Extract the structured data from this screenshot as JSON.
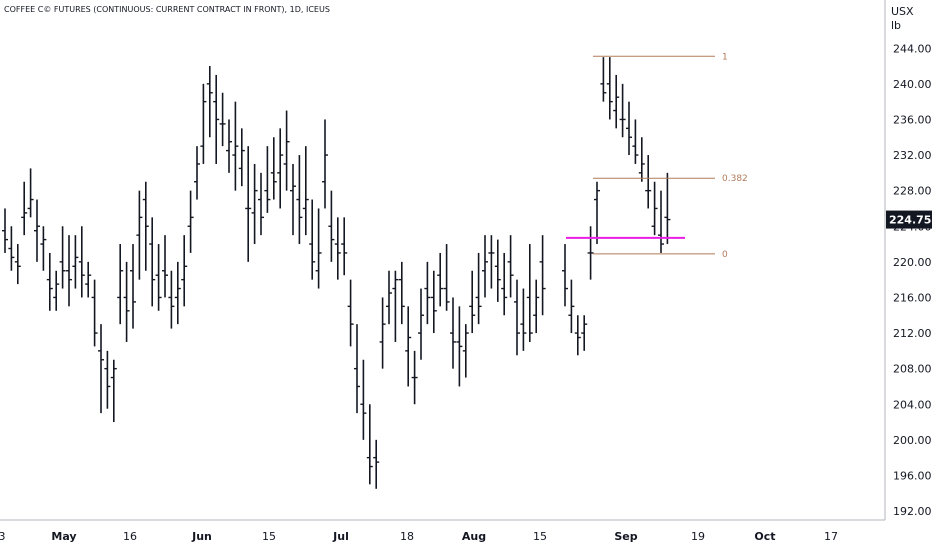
{
  "chart_title": "COFFEE C© FUTURES (CONTINUOUS: CURRENT CONTRACT IN FRONT), 1D, ICEUS",
  "unit_top": "USX",
  "unit_bottom": "lb",
  "last_price": "224.75",
  "colors": {
    "bars": "#131722",
    "fib_line": "#b07a5a",
    "support_line": "#e91ee6",
    "price_tag": "#131722",
    "axis_line": "#b2b5be"
  },
  "chart_data": {
    "type": "ohlc",
    "title": "COFFEE C© FUTURES (CONTINUOUS: CURRENT CONTRACT IN FRONT), 1D, ICEUS",
    "ylim": [
      190,
      246
    ],
    "yticks": [
      "244.00",
      "240.00",
      "236.00",
      "232.00",
      "228.00",
      "224.00",
      "220.00",
      "216.00",
      "212.00",
      "208.00",
      "204.00",
      "200.00",
      "196.00",
      "192.00"
    ],
    "xlabels": [
      {
        "label": "3",
        "month": false
      },
      {
        "label": "May",
        "month": true
      },
      {
        "label": "16",
        "month": false
      },
      {
        "label": "Jun",
        "month": true
      },
      {
        "label": "15",
        "month": false
      },
      {
        "label": "Jul",
        "month": true
      },
      {
        "label": "18",
        "month": false
      },
      {
        "label": "Aug",
        "month": true
      },
      {
        "label": "15",
        "month": false
      },
      {
        "label": "Sep",
        "month": true
      },
      {
        "label": "19",
        "month": false
      },
      {
        "label": "Oct",
        "month": true
      },
      {
        "label": "17",
        "month": false
      }
    ],
    "fib_levels": [
      {
        "label": "1",
        "value": 243.1
      },
      {
        "label": "0.382",
        "value": 229.4
      },
      {
        "label": "0",
        "value": 220.9
      }
    ],
    "support_level": 222.7,
    "bars": [
      [
        223.5,
        226,
        221,
        222.5
      ],
      [
        221.5,
        224,
        219,
        220.5
      ],
      [
        220,
        222,
        217.5,
        219.5
      ],
      [
        225,
        229,
        223,
        225.5
      ],
      [
        226,
        230.5,
        225,
        227
      ],
      [
        223.5,
        227,
        220,
        224
      ],
      [
        222,
        224,
        219,
        222.5
      ],
      [
        218,
        221,
        214.5,
        217
      ],
      [
        216,
        219,
        214.5,
        217.5
      ],
      [
        220,
        224,
        217,
        219
      ],
      [
        219,
        223,
        215,
        218
      ],
      [
        219.5,
        223,
        217,
        220.5
      ],
      [
        220,
        224,
        216,
        218.5
      ],
      [
        217.5,
        220,
        216,
        218.5
      ],
      [
        216,
        218,
        210.5,
        212
      ],
      [
        210,
        213,
        203,
        209
      ],
      [
        208,
        210,
        203.5,
        206
      ],
      [
        207,
        209,
        202,
        208
      ],
      [
        216,
        222,
        213,
        219
      ],
      [
        216,
        220,
        211,
        214.5
      ],
      [
        219,
        222,
        212.5,
        215.5
      ],
      [
        223,
        228,
        218,
        225
      ],
      [
        227,
        229,
        219,
        224
      ],
      [
        222,
        225,
        215,
        218
      ],
      [
        218.5,
        222,
        214.5,
        216
      ],
      [
        219,
        223,
        216,
        218.5
      ],
      [
        216,
        219,
        212.5,
        215
      ],
      [
        216,
        220,
        213,
        217
      ],
      [
        218,
        223,
        215,
        219.5
      ],
      [
        224,
        228,
        221,
        225
      ],
      [
        229,
        233,
        227,
        231
      ],
      [
        233,
        240,
        231,
        238
      ],
      [
        240,
        242,
        234,
        239
      ],
      [
        238,
        241,
        231,
        236
      ],
      [
        235.5,
        239,
        233,
        235.5
      ],
      [
        232.5,
        236,
        230,
        233.5
      ],
      [
        232,
        238,
        228,
        233
      ],
      [
        230.5,
        235,
        228.5,
        232.5
      ],
      [
        226,
        233,
        220,
        226
      ],
      [
        225.5,
        231,
        222,
        228
      ],
      [
        227,
        230,
        223,
        225
      ],
      [
        228,
        233,
        225.5,
        227
      ],
      [
        230,
        234,
        227,
        229
      ],
      [
        230,
        235,
        226,
        232
      ],
      [
        231,
        237,
        228,
        233.5
      ],
      [
        228,
        231,
        223,
        228.5
      ],
      [
        227,
        232,
        222,
        225
      ],
      [
        226,
        233,
        223,
        227
      ],
      [
        222,
        227,
        218,
        220
      ],
      [
        219,
        226,
        217,
        221
      ],
      [
        229,
        236,
        226,
        232
      ],
      [
        224,
        228,
        220,
        222.5
      ],
      [
        222,
        225,
        218,
        221
      ],
      [
        222,
        225,
        218.5,
        221
      ],
      [
        215,
        218,
        210.5,
        213
      ],
      [
        208,
        213,
        203,
        206
      ],
      [
        204,
        209,
        200,
        203
      ],
      [
        198,
        204,
        195,
        197
      ],
      [
        198,
        200,
        194.5,
        197.5
      ],
      [
        211,
        216,
        208,
        213
      ],
      [
        215,
        219,
        213,
        216.5
      ],
      [
        217,
        219,
        211,
        218
      ],
      [
        218,
        220,
        213,
        215
      ],
      [
        210,
        215,
        206,
        211.5
      ],
      [
        207,
        210,
        204,
        207
      ],
      [
        212,
        217,
        209,
        214
      ],
      [
        217,
        220,
        213,
        216
      ],
      [
        216,
        219,
        212,
        214.5
      ],
      [
        218.5,
        221,
        215,
        217
      ],
      [
        217,
        222,
        214.5,
        215.5
      ],
      [
        212,
        216,
        208,
        211
      ],
      [
        211,
        215,
        206,
        210.5
      ],
      [
        210,
        213,
        207,
        212
      ],
      [
        215,
        219,
        212,
        214
      ],
      [
        216,
        221,
        213,
        215
      ],
      [
        219,
        223,
        216,
        220
      ],
      [
        221,
        223,
        217,
        221
      ],
      [
        219.5,
        222.5,
        215.5,
        218
      ],
      [
        217,
        221,
        214,
        216
      ],
      [
        220,
        223,
        216,
        218.5
      ],
      [
        215.5,
        218,
        209.5,
        212
      ],
      [
        213,
        217,
        210,
        212
      ],
      [
        216,
        222,
        211,
        212
      ],
      [
        214,
        218,
        212,
        216
      ],
      [
        220,
        223,
        214,
        217
      ]
    ],
    "recent_bars": [
      [
        219,
        222,
        215,
        217
      ],
      [
        214,
        218,
        212,
        215
      ],
      [
        212,
        214,
        209.5,
        211.5
      ],
      [
        212,
        214,
        210,
        213
      ],
      [
        221,
        224,
        218,
        221
      ],
      [
        227,
        229,
        222,
        228
      ],
      [
        240,
        243,
        238,
        239
      ],
      [
        240,
        243,
        236,
        238
      ],
      [
        237,
        241,
        235,
        238.5
      ],
      [
        236,
        240,
        234,
        236
      ],
      [
        235,
        238,
        232,
        234
      ],
      [
        233,
        236,
        231,
        232
      ],
      [
        230,
        234,
        229,
        231
      ],
      [
        228,
        232,
        226,
        228
      ],
      [
        224,
        229,
        223,
        226
      ],
      [
        223,
        228,
        221,
        222
      ],
      [
        225,
        230,
        222,
        224.75
      ]
    ]
  }
}
